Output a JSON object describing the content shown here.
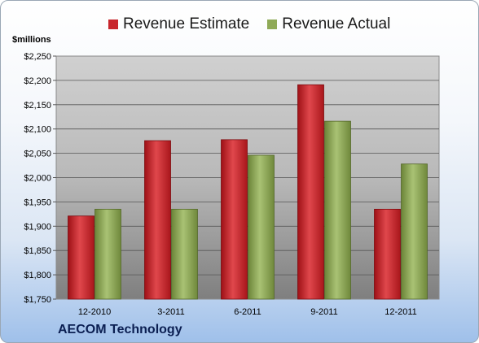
{
  "chart_data": {
    "type": "bar",
    "categories": [
      "12-2010",
      "3-2011",
      "6-2011",
      "9-2011",
      "12-2011"
    ],
    "series": [
      {
        "name": "Revenue Estimate",
        "color": "#c8262c",
        "values": [
          1921,
          2076,
          2078,
          2191,
          1935
        ]
      },
      {
        "name": "Revenue Actual",
        "color": "#8faa57",
        "values": [
          1935,
          1935,
          2046,
          2116,
          2028
        ]
      }
    ],
    "ylabel": "$millions",
    "ylim": [
      1750,
      2250
    ],
    "yticks": [
      1750,
      1800,
      1850,
      1900,
      1950,
      2000,
      2050,
      2100,
      2150,
      2200,
      2250
    ],
    "ytick_labels": [
      "$1,750",
      "$1,800",
      "$1,850",
      "$1,900",
      "$1,950",
      "$2,000",
      "$2,050",
      "$2,100",
      "$2,150",
      "$2,200",
      "$2,250"
    ],
    "grid": true,
    "legend": "top"
  },
  "footer": {
    "company": "AECOM Technology"
  }
}
